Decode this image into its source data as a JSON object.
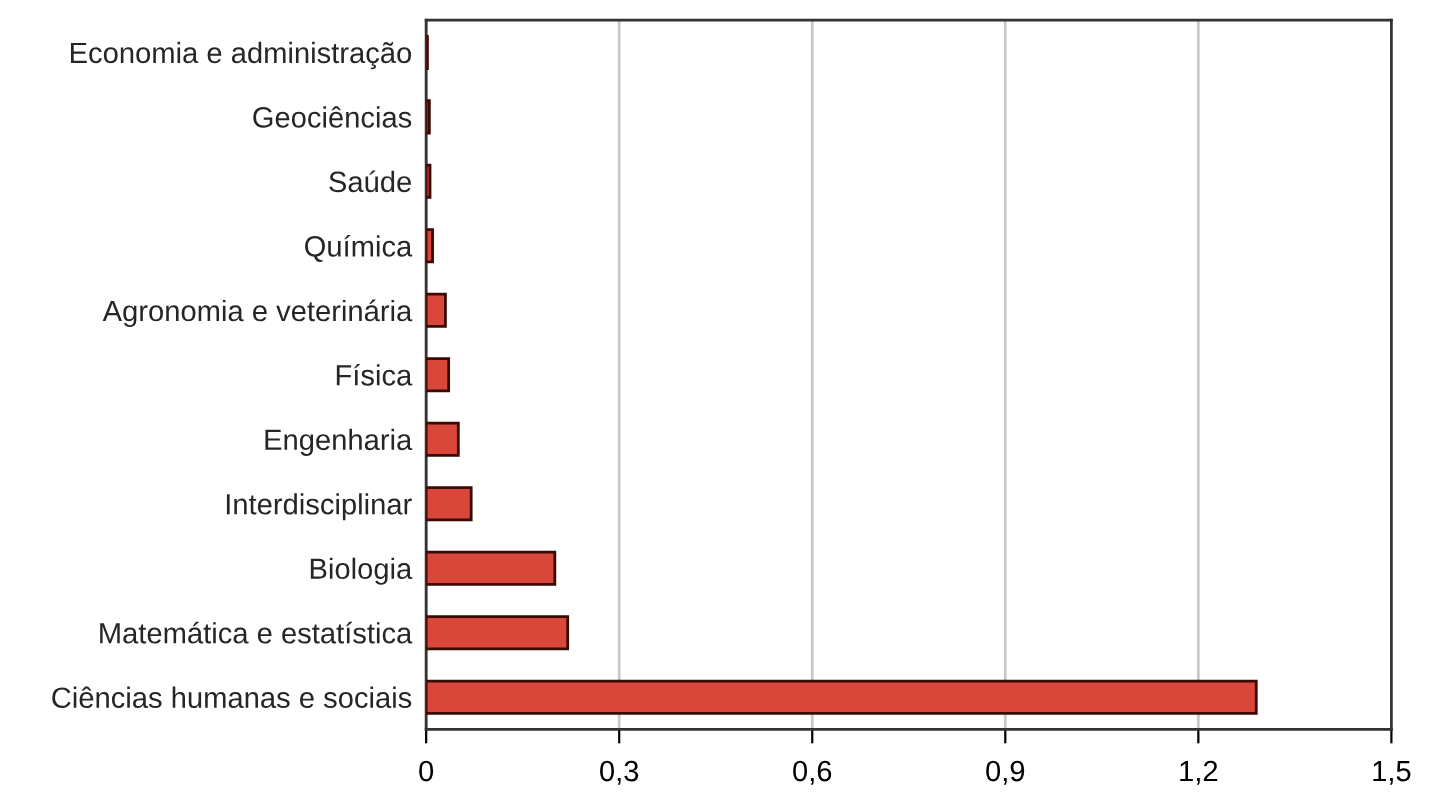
{
  "chart_data": {
    "type": "bar",
    "orientation": "horizontal",
    "categories": [
      "Economia e administração",
      "Geociências",
      "Saúde",
      "Química",
      "Agronomia e veterinária",
      "Física",
      "Engenharia",
      "Interdisciplinar",
      "Biologia",
      "Matemática e estatística",
      "Ciências humanas e sociais"
    ],
    "values": [
      0.002,
      0.005,
      0.006,
      0.01,
      0.03,
      0.035,
      0.05,
      0.07,
      0.2,
      0.22,
      1.29
    ],
    "color": "#d9463a",
    "xlim": [
      0,
      1.5
    ],
    "xticks": [
      {
        "value": 0,
        "label": "0"
      },
      {
        "value": 0.3,
        "label": "0,3"
      },
      {
        "value": 0.6,
        "label": "0,6"
      },
      {
        "value": 0.9,
        "label": "0,9"
      },
      {
        "value": 1.2,
        "label": "1,2"
      },
      {
        "value": 1.5,
        "label": "1,5"
      }
    ],
    "grid": "x"
  }
}
